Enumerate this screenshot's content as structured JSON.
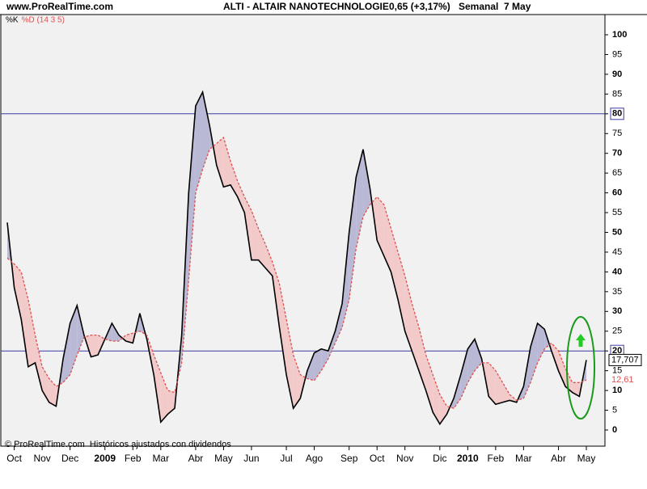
{
  "chart_data": {
    "type": "line",
    "site": "www.ProRealTime.com",
    "title": "ALTI - ALTAIR NANOTECHNOLOGIE",
    "price": "0,65 (+3,17%)",
    "period": "Semanal  7 May",
    "footer": "© ProRealTime.com  Históricos ajustados con dividendos",
    "categories": [
      null,
      "Oct",
      null,
      null,
      null,
      "Nov",
      null,
      null,
      null,
      "Dec",
      null,
      null,
      null,
      null,
      "2009",
      null,
      null,
      null,
      "Feb",
      null,
      null,
      null,
      "Mar",
      null,
      null,
      null,
      null,
      "Abr",
      null,
      null,
      null,
      "May",
      null,
      null,
      null,
      "Jun",
      null,
      null,
      null,
      null,
      "Jul",
      null,
      null,
      null,
      "Ago",
      null,
      null,
      null,
      null,
      "Sep",
      null,
      null,
      null,
      "Oct",
      null,
      null,
      null,
      "Nov",
      null,
      null,
      null,
      null,
      "Dic",
      null,
      null,
      null,
      "2010",
      null,
      null,
      null,
      "Feb",
      null,
      null,
      null,
      "Mar",
      null,
      null,
      null,
      null,
      "Abr",
      null,
      null,
      null,
      "May"
    ],
    "series": [
      {
        "name": "%K",
        "color": "#000000",
        "values": [
          52.5,
          36,
          28,
          16,
          17,
          10,
          7,
          6,
          18,
          27,
          31.5,
          24,
          18.5,
          19,
          23,
          27,
          24,
          22.5,
          22,
          29.5,
          23,
          14,
          2,
          4,
          5.5,
          24,
          60,
          82,
          85.5,
          77,
          67,
          61.5,
          62,
          59,
          55,
          43,
          43,
          41,
          39,
          26,
          14,
          5.5,
          8,
          15,
          19.5,
          20.5,
          20,
          25,
          32,
          50,
          64,
          71,
          61,
          48,
          44,
          40,
          33,
          25,
          20,
          15,
          10,
          4.5,
          1.5,
          4,
          8,
          14,
          20.5,
          23,
          18,
          8.5,
          6.5,
          7,
          7.5,
          7,
          11,
          21,
          27,
          25.5,
          20,
          15,
          11,
          9.5,
          8.5,
          17.707
        ],
        "value_labels": [
          null,
          null,
          null,
          null,
          null,
          null,
          null,
          null,
          null,
          null,
          null,
          null,
          null,
          null,
          null,
          null,
          null,
          null,
          null,
          null,
          null,
          null,
          null,
          null,
          null,
          null,
          null,
          null,
          null,
          null,
          null,
          null,
          null,
          null,
          null,
          null,
          null,
          null,
          null,
          null,
          null,
          null,
          null,
          null,
          null,
          null,
          null,
          null,
          null,
          null,
          null,
          null,
          null,
          null,
          null,
          null,
          null,
          null,
          null,
          null,
          null,
          null,
          null,
          null,
          null,
          null,
          null,
          null,
          null,
          null,
          null,
          null,
          null,
          null,
          null,
          null,
          null,
          null,
          null,
          null,
          null,
          null,
          null,
          "17,707"
        ]
      },
      {
        "name": "%D (14 3 5)",
        "color": "#e05050",
        "values": [
          43.5,
          42,
          40,
          33,
          24,
          16,
          13,
          11,
          12,
          14,
          19,
          23.5,
          24,
          24,
          23,
          22.5,
          22.5,
          24,
          24.5,
          25,
          24,
          19,
          14.5,
          10,
          9.5,
          17,
          38,
          60,
          66,
          71,
          72.5,
          74,
          68,
          63,
          59,
          55.5,
          51,
          47,
          42.5,
          37,
          28,
          19,
          14,
          13,
          12.5,
          15,
          18,
          22,
          26,
          33,
          46,
          54,
          57,
          59,
          57,
          51,
          45,
          39,
          32,
          26,
          19,
          14,
          9,
          6,
          5.5,
          8,
          12,
          15,
          17,
          17,
          15,
          12,
          9,
          7.5,
          8,
          12,
          17,
          20.5,
          22,
          20,
          15.5,
          12,
          12,
          12.61
        ],
        "value_labels": [
          null,
          null,
          null,
          null,
          null,
          null,
          null,
          null,
          null,
          null,
          null,
          null,
          null,
          null,
          null,
          null,
          null,
          null,
          null,
          null,
          null,
          null,
          null,
          null,
          null,
          null,
          null,
          null,
          null,
          null,
          null,
          null,
          null,
          null,
          null,
          null,
          null,
          null,
          null,
          null,
          null,
          null,
          null,
          null,
          null,
          null,
          null,
          null,
          null,
          null,
          null,
          null,
          null,
          null,
          null,
          null,
          null,
          null,
          null,
          null,
          null,
          null,
          null,
          null,
          null,
          null,
          null,
          null,
          null,
          null,
          null,
          null,
          null,
          null,
          null,
          null,
          null,
          null,
          null,
          null,
          null,
          null,
          null,
          "12,61"
        ]
      }
    ],
    "fill_above": "#b9b9d6",
    "fill_below": "#f3caca",
    "hlines": [
      80,
      20
    ],
    "hline_color": "#3c3ca8",
    "ylim": [
      0,
      100
    ],
    "yticks": [
      0,
      5,
      10,
      15,
      20,
      25,
      30,
      35,
      40,
      45,
      50,
      55,
      60,
      65,
      70,
      75,
      80,
      85,
      90,
      95,
      100
    ]
  }
}
